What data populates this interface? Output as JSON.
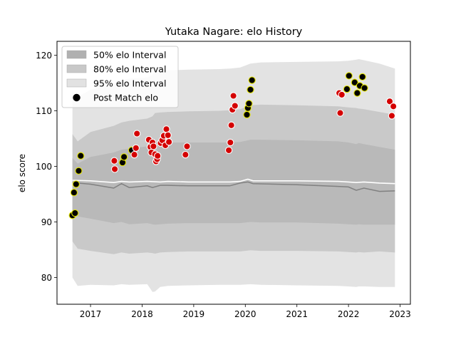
{
  "chart_data": {
    "type": "scatter",
    "title": "Yutaka Nagare: elo History",
    "xlabel": "",
    "ylabel": "elo score",
    "xlim": [
      2016.35,
      2023.2
    ],
    "ylim": [
      75.2,
      122.5
    ],
    "x_ticks": [
      2017,
      2018,
      2019,
      2020,
      2021,
      2022,
      2023
    ],
    "y_ticks": [
      80,
      90,
      100,
      110,
      120
    ],
    "grid": false,
    "legend_position": "top-left",
    "legend": [
      {
        "label": "50% elo Interval",
        "kind": "band",
        "color": "#b0b0b0"
      },
      {
        "label": "80% elo Interval",
        "kind": "band",
        "color": "#c8c8c8"
      },
      {
        "label": "95% elo Interval",
        "kind": "band",
        "color": "#e2e2e2"
      },
      {
        "label": "Post Match elo",
        "kind": "marker",
        "color": "#000000"
      }
    ],
    "colors": {
      "band_95": "#e3e3e3",
      "band_80": "#c9c9c9",
      "band_50": "#b9b9b9",
      "mean_line": "#ffffff",
      "median_line": "#808080",
      "win_marker": "#000000",
      "win_edge": "#e6e600",
      "loss_marker": "#d40000",
      "loss_edge": "#ffffff"
    },
    "bands": {
      "x": [
        2016.65,
        2016.75,
        2017.0,
        2017.45,
        2017.6,
        2017.75,
        2018.1,
        2018.2,
        2018.25,
        2018.35,
        2018.5,
        2018.9,
        2019.5,
        2019.7,
        2019.9,
        2020.1,
        2020.3,
        2021.0,
        2021.8,
        2022.0,
        2022.15,
        2022.2,
        2022.3,
        2022.6,
        2022.9
      ],
      "p95_upper": [
        113.5,
        112.5,
        113.8,
        114.8,
        115.5,
        115.8,
        116.0,
        116.5,
        117.0,
        117.2,
        117.3,
        117.4,
        117.5,
        117.6,
        117.8,
        118.5,
        118.7,
        118.8,
        118.9,
        119.0,
        119.2,
        119.3,
        119.1,
        118.5,
        117.6
      ],
      "p80_upper": [
        105.8,
        104.5,
        106.2,
        107.3,
        107.9,
        108.2,
        108.6,
        109.0,
        109.6,
        109.7,
        109.8,
        109.9,
        110.0,
        110.1,
        110.3,
        111.0,
        111.1,
        111.0,
        110.8,
        110.6,
        110.5,
        110.4,
        110.3,
        109.8,
        109.3
      ],
      "p50_upper": [
        101.5,
        100.5,
        101.7,
        102.5,
        103.0,
        103.2,
        103.6,
        103.9,
        104.3,
        104.3,
        104.3,
        104.3,
        104.3,
        104.3,
        104.4,
        104.8,
        104.8,
        104.7,
        104.5,
        104.3,
        104.0,
        104.2,
        104.0,
        103.5,
        103.0
      ],
      "p50_lower": [
        92.0,
        91.0,
        90.6,
        89.8,
        90.0,
        89.6,
        89.8,
        89.6,
        89.5,
        89.6,
        89.7,
        89.8,
        89.8,
        89.8,
        89.8,
        90.0,
        89.9,
        89.9,
        89.7,
        89.6,
        89.5,
        89.6,
        89.5,
        89.5,
        89.5
      ],
      "p80_lower": [
        86.5,
        85.2,
        84.8,
        84.2,
        84.5,
        84.3,
        84.5,
        84.4,
        84.3,
        84.5,
        84.6,
        84.7,
        84.7,
        84.7,
        84.7,
        84.9,
        84.8,
        84.8,
        84.7,
        84.6,
        84.5,
        84.6,
        84.5,
        84.7,
        84.5
      ],
      "p95_lower": [
        80.0,
        78.5,
        78.7,
        78.6,
        78.8,
        78.7,
        78.8,
        77.4,
        77.5,
        78.3,
        78.5,
        78.6,
        78.7,
        78.7,
        78.7,
        78.8,
        78.7,
        78.6,
        78.5,
        78.4,
        78.3,
        78.4,
        78.4,
        78.3,
        78.3
      ]
    },
    "mean_line": {
      "x": [
        2016.65,
        2017.0,
        2017.45,
        2017.6,
        2017.75,
        2018.1,
        2018.35,
        2018.5,
        2018.9,
        2019.5,
        2019.7,
        2019.9,
        2020.05,
        2020.15,
        2021.0,
        2021.8,
        2022.0,
        2022.15,
        2022.3,
        2022.6,
        2022.9
      ],
      "y": [
        97.5,
        97.4,
        97.1,
        97.3,
        97.2,
        97.3,
        97.2,
        97.3,
        97.2,
        97.2,
        97.2,
        97.3,
        97.7,
        97.4,
        97.4,
        97.3,
        97.2,
        97.1,
        97.2,
        97.0,
        96.9
      ]
    },
    "median_line": {
      "x": [
        2016.65,
        2017.0,
        2017.45,
        2017.6,
        2017.75,
        2018.1,
        2018.2,
        2018.35,
        2018.5,
        2018.9,
        2019.5,
        2019.7,
        2019.9,
        2020.05,
        2020.15,
        2021.0,
        2021.8,
        2022.0,
        2022.15,
        2022.3,
        2022.6,
        2022.9
      ],
      "y": [
        97.1,
        96.8,
        96.1,
        96.9,
        96.2,
        96.5,
        96.2,
        96.6,
        96.6,
        96.5,
        96.5,
        96.5,
        97.0,
        97.2,
        96.9,
        96.7,
        96.4,
        96.3,
        95.7,
        96.1,
        95.5,
        95.6
      ]
    },
    "series": [
      {
        "name": "Post Match elo",
        "marker": "win",
        "points": [
          {
            "x": 2016.65,
            "y": 91.2
          },
          {
            "x": 2016.68,
            "y": 95.3
          },
          {
            "x": 2016.7,
            "y": 91.6
          },
          {
            "x": 2016.72,
            "y": 96.8
          },
          {
            "x": 2016.77,
            "y": 99.2
          },
          {
            "x": 2016.81,
            "y": 101.9
          },
          {
            "x": 2017.62,
            "y": 100.7
          },
          {
            "x": 2017.65,
            "y": 101.7
          },
          {
            "x": 2017.8,
            "y": 102.9
          },
          {
            "x": 2020.03,
            "y": 109.3
          },
          {
            "x": 2020.05,
            "y": 110.5
          },
          {
            "x": 2020.07,
            "y": 111.3
          },
          {
            "x": 2020.1,
            "y": 113.8
          },
          {
            "x": 2020.13,
            "y": 115.5
          },
          {
            "x": 2021.97,
            "y": 113.9
          },
          {
            "x": 2022.01,
            "y": 116.3
          },
          {
            "x": 2022.12,
            "y": 115.1
          },
          {
            "x": 2022.17,
            "y": 113.2
          },
          {
            "x": 2022.22,
            "y": 114.5
          },
          {
            "x": 2022.27,
            "y": 116.1
          },
          {
            "x": 2022.31,
            "y": 114.1
          }
        ]
      },
      {
        "name": "",
        "marker": "loss",
        "points": [
          {
            "x": 2017.46,
            "y": 101.0
          },
          {
            "x": 2017.47,
            "y": 99.5
          },
          {
            "x": 2017.85,
            "y": 102.1
          },
          {
            "x": 2017.88,
            "y": 103.3
          },
          {
            "x": 2017.9,
            "y": 105.9
          },
          {
            "x": 2018.13,
            "y": 104.8
          },
          {
            "x": 2018.16,
            "y": 103.5
          },
          {
            "x": 2018.18,
            "y": 102.5
          },
          {
            "x": 2018.2,
            "y": 104.3
          },
          {
            "x": 2018.22,
            "y": 103.6
          },
          {
            "x": 2018.25,
            "y": 102.2
          },
          {
            "x": 2018.27,
            "y": 100.9
          },
          {
            "x": 2018.29,
            "y": 101.3
          },
          {
            "x": 2018.3,
            "y": 101.9
          },
          {
            "x": 2018.36,
            "y": 104.2
          },
          {
            "x": 2018.39,
            "y": 104.7
          },
          {
            "x": 2018.42,
            "y": 105.5
          },
          {
            "x": 2018.45,
            "y": 103.8
          },
          {
            "x": 2018.47,
            "y": 106.7
          },
          {
            "x": 2018.5,
            "y": 105.6
          },
          {
            "x": 2018.52,
            "y": 104.4
          },
          {
            "x": 2018.84,
            "y": 102.1
          },
          {
            "x": 2018.87,
            "y": 103.6
          },
          {
            "x": 2019.68,
            "y": 102.9
          },
          {
            "x": 2019.71,
            "y": 104.3
          },
          {
            "x": 2019.73,
            "y": 107.4
          },
          {
            "x": 2019.75,
            "y": 110.2
          },
          {
            "x": 2019.77,
            "y": 112.7
          },
          {
            "x": 2019.8,
            "y": 110.9
          },
          {
            "x": 2021.82,
            "y": 113.2
          },
          {
            "x": 2021.84,
            "y": 109.6
          },
          {
            "x": 2021.87,
            "y": 112.9
          },
          {
            "x": 2022.8,
            "y": 111.7
          },
          {
            "x": 2022.84,
            "y": 109.1
          },
          {
            "x": 2022.87,
            "y": 110.8
          }
        ]
      }
    ]
  }
}
